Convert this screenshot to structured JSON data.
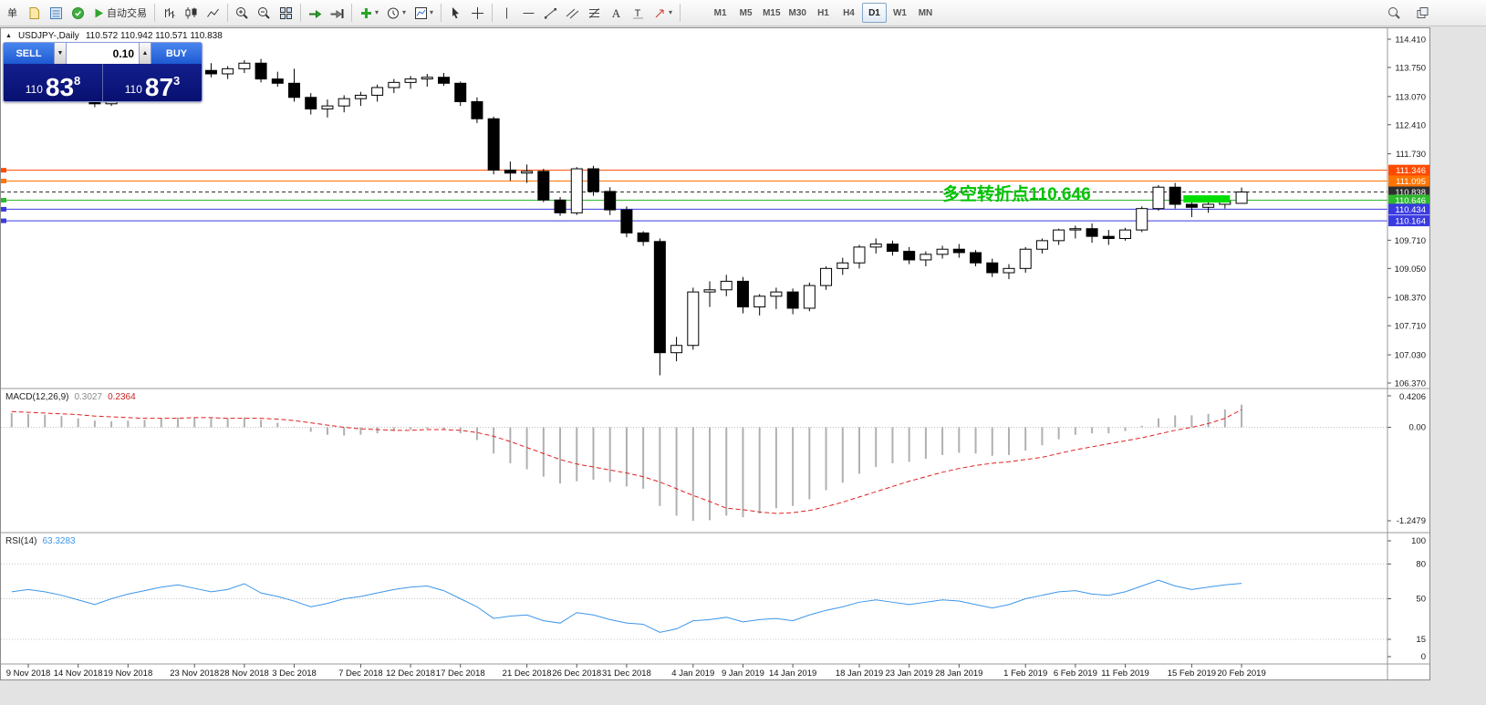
{
  "toolbar": {
    "new_order_label": "单",
    "autotrading_label": "自动交易",
    "timeframes": [
      "M1",
      "M5",
      "M15",
      "M30",
      "H1",
      "H4",
      "D1",
      "W1",
      "MN"
    ],
    "active_timeframe": "D1"
  },
  "chart": {
    "header": {
      "marker": "▲",
      "title": "USDJPY-,Daily",
      "ohlc": "110.572 110.942 110.571 110.838"
    },
    "trade_panel": {
      "sell_label": "SELL",
      "buy_label": "BUY",
      "lot": "0.10",
      "sell_price": {
        "prefix": "110",
        "big": "83",
        "sup": "8"
      },
      "buy_price": {
        "prefix": "110",
        "big": "87",
        "sup": "3"
      }
    },
    "annotation": {
      "text": "多空转折点110.646",
      "color": "#00c400"
    }
  },
  "chart_data": {
    "type": "candlestick+macd+rsi",
    "symbol": "USDJPY-",
    "timeframe": "Daily",
    "ohlc_header": {
      "open": 110.572,
      "high": 110.942,
      "low": 110.571,
      "close": 110.838
    },
    "x_labels": [
      [
        1,
        "9 Nov 2018"
      ],
      [
        4,
        "14 Nov 2018"
      ],
      [
        7,
        "19 Nov 2018"
      ],
      [
        11,
        "23 Nov 2018"
      ],
      [
        14,
        "28 Nov 2018"
      ],
      [
        17,
        "3 Dec 2018"
      ],
      [
        21,
        "7 Dec 2018"
      ],
      [
        24,
        "12 Dec 2018"
      ],
      [
        27,
        "17 Dec 2018"
      ],
      [
        31,
        "21 Dec 2018"
      ],
      [
        34,
        "26 Dec 2018"
      ],
      [
        37,
        "31 Dec 2018"
      ],
      [
        41,
        "4 Jan 2019"
      ],
      [
        44,
        "9 Jan 2019"
      ],
      [
        47,
        "14 Jan 2019"
      ],
      [
        51,
        "18 Jan 2019"
      ],
      [
        54,
        "23 Jan 2019"
      ],
      [
        57,
        "28 Jan 2019"
      ],
      [
        61,
        "1 Feb 2019"
      ],
      [
        64,
        "6 Feb 2019"
      ],
      [
        67,
        "11 Feb 2019"
      ],
      [
        71,
        "15 Feb 2019"
      ],
      [
        74,
        "20 Feb 2019"
      ]
    ],
    "candles": [
      [
        113.42,
        113.65,
        113.3,
        113.5
      ],
      [
        113.5,
        113.72,
        113.38,
        113.55
      ],
      [
        113.55,
        113.68,
        113.4,
        113.48
      ],
      [
        113.48,
        113.6,
        113.25,
        113.32
      ],
      [
        113.32,
        113.45,
        112.94,
        113.05
      ],
      [
        113.05,
        113.18,
        112.82,
        112.9
      ],
      [
        112.9,
        113.25,
        112.85,
        113.18
      ],
      [
        113.18,
        113.45,
        113.1,
        113.4
      ],
      [
        113.4,
        113.62,
        113.3,
        113.55
      ],
      [
        113.55,
        113.78,
        113.45,
        113.72
      ],
      [
        113.72,
        113.9,
        113.55,
        113.82
      ],
      [
        113.82,
        113.95,
        113.6,
        113.68
      ],
      [
        113.68,
        113.85,
        113.52,
        113.6
      ],
      [
        113.6,
        113.78,
        113.48,
        113.72
      ],
      [
        113.72,
        113.92,
        113.62,
        113.85
      ],
      [
        113.85,
        113.95,
        113.4,
        113.48
      ],
      [
        113.48,
        113.65,
        113.3,
        113.38
      ],
      [
        113.38,
        113.72,
        112.95,
        113.05
      ],
      [
        113.05,
        113.15,
        112.65,
        112.78
      ],
      [
        112.78,
        113.0,
        112.58,
        112.85
      ],
      [
        112.85,
        113.1,
        112.7,
        113.02
      ],
      [
        113.02,
        113.18,
        112.85,
        113.1
      ],
      [
        113.1,
        113.35,
        112.95,
        113.28
      ],
      [
        113.28,
        113.48,
        113.15,
        113.4
      ],
      [
        113.4,
        113.55,
        113.25,
        113.48
      ],
      [
        113.48,
        113.6,
        113.3,
        113.52
      ],
      [
        113.52,
        113.62,
        113.32,
        113.38
      ],
      [
        113.38,
        113.42,
        112.85,
        112.95
      ],
      [
        112.95,
        113.05,
        112.45,
        112.55
      ],
      [
        112.55,
        112.6,
        111.25,
        111.35
      ],
      [
        111.35,
        111.55,
        111.1,
        111.28
      ],
      [
        111.28,
        111.48,
        111.05,
        111.32
      ],
      [
        111.32,
        111.38,
        110.6,
        110.65
      ],
      [
        110.65,
        110.72,
        110.28,
        110.35
      ],
      [
        110.35,
        111.42,
        110.3,
        111.38
      ],
      [
        111.38,
        111.45,
        110.75,
        110.85
      ],
      [
        110.85,
        110.95,
        110.3,
        110.42
      ],
      [
        110.42,
        110.5,
        109.78,
        109.88
      ],
      [
        109.88,
        109.92,
        109.58,
        109.68
      ],
      [
        109.68,
        109.75,
        106.55,
        107.08
      ],
      [
        107.08,
        107.45,
        106.88,
        107.25
      ],
      [
        107.25,
        108.6,
        107.15,
        108.5
      ],
      [
        108.5,
        108.75,
        108.15,
        108.55
      ],
      [
        108.55,
        108.9,
        108.4,
        108.75
      ],
      [
        108.75,
        108.85,
        108.0,
        108.15
      ],
      [
        108.15,
        108.45,
        107.95,
        108.4
      ],
      [
        108.4,
        108.6,
        108.1,
        108.5
      ],
      [
        108.5,
        108.58,
        107.98,
        108.12
      ],
      [
        108.12,
        108.72,
        108.05,
        108.65
      ],
      [
        108.65,
        109.1,
        108.55,
        109.05
      ],
      [
        109.05,
        109.3,
        108.9,
        109.18
      ],
      [
        109.18,
        109.6,
        109.05,
        109.55
      ],
      [
        109.55,
        109.75,
        109.4,
        109.62
      ],
      [
        109.62,
        109.7,
        109.35,
        109.45
      ],
      [
        109.45,
        109.55,
        109.15,
        109.25
      ],
      [
        109.25,
        109.45,
        109.1,
        109.38
      ],
      [
        109.38,
        109.58,
        109.28,
        109.5
      ],
      [
        109.5,
        109.62,
        109.3,
        109.42
      ],
      [
        109.42,
        109.48,
        109.1,
        109.18
      ],
      [
        109.18,
        109.28,
        108.85,
        108.95
      ],
      [
        108.95,
        109.15,
        108.8,
        109.05
      ],
      [
        109.05,
        109.55,
        108.95,
        109.5
      ],
      [
        109.5,
        109.75,
        109.4,
        109.7
      ],
      [
        109.7,
        109.98,
        109.6,
        109.95
      ],
      [
        109.95,
        110.05,
        109.75,
        109.98
      ],
      [
        109.98,
        110.1,
        109.65,
        109.8
      ],
      [
        109.8,
        109.95,
        109.6,
        109.75
      ],
      [
        109.75,
        110.0,
        109.7,
        109.95
      ],
      [
        109.95,
        110.5,
        109.9,
        110.45
      ],
      [
        110.45,
        111.0,
        110.4,
        110.95
      ],
      [
        110.95,
        111.05,
        110.45,
        110.55
      ],
      [
        110.55,
        110.68,
        110.25,
        110.48
      ],
      [
        110.48,
        110.62,
        110.35,
        110.55
      ],
      [
        110.55,
        110.7,
        110.45,
        110.62
      ],
      [
        110.572,
        110.942,
        110.571,
        110.838
      ]
    ],
    "price_axis": [
      "114.410",
      "113.750",
      "113.070",
      "112.410",
      "111.730",
      "109.710",
      "109.050",
      "108.370",
      "107.710",
      "107.030",
      "106.370"
    ],
    "levels": [
      {
        "price": 111.346,
        "label": "111.346",
        "color": "#ff4a00"
      },
      {
        "price": 111.095,
        "label": "111.095",
        "color": "#ff7300"
      },
      {
        "price": 110.838,
        "label": "110.838",
        "color": "#2f2f2f",
        "style": "dash"
      },
      {
        "price": 110.646,
        "label": "110.646",
        "color": "#2db82d"
      },
      {
        "price": 110.434,
        "label": "110.434",
        "color": "#3a3ae0"
      },
      {
        "price": 110.164,
        "label": "110.164",
        "color": "#3a3ae0"
      }
    ],
    "rect_annotation": {
      "bar1": 70.5,
      "bar2": 73.3,
      "price1": 110.76,
      "price2": 110.59,
      "color": "#00dd00"
    },
    "macd": {
      "label": "MACD(12,26,9)",
      "main_value": "0.3027",
      "signal_value": "0.2364",
      "scale": [
        {
          "v": 0.4206,
          "t": "0.4206"
        },
        {
          "v": 0,
          "t": "0.00"
        },
        {
          "v": -1.2479,
          "t": "-1.2479"
        }
      ],
      "hist": [
        0.19,
        0.18,
        0.17,
        0.15,
        0.12,
        0.09,
        0.08,
        0.09,
        0.1,
        0.12,
        0.13,
        0.13,
        0.12,
        0.12,
        0.13,
        0.1,
        0.06,
        0.01,
        -0.06,
        -0.1,
        -0.11,
        -0.1,
        -0.08,
        -0.05,
        -0.03,
        -0.02,
        -0.03,
        -0.08,
        -0.17,
        -0.35,
        -0.48,
        -0.56,
        -0.66,
        -0.75,
        -0.72,
        -0.7,
        -0.73,
        -0.79,
        -0.82,
        -1.05,
        -1.18,
        -1.25,
        -1.24,
        -1.18,
        -1.2,
        -1.15,
        -1.08,
        -1.05,
        -0.96,
        -0.84,
        -0.74,
        -0.62,
        -0.53,
        -0.48,
        -0.46,
        -0.42,
        -0.37,
        -0.34,
        -0.35,
        -0.38,
        -0.37,
        -0.31,
        -0.24,
        -0.16,
        -0.1,
        -0.08,
        -0.08,
        -0.05,
        0.02,
        0.12,
        0.16,
        0.16,
        0.18,
        0.24,
        0.3027
      ],
      "signal": [
        0.21,
        0.2,
        0.19,
        0.18,
        0.17,
        0.15,
        0.14,
        0.13,
        0.12,
        0.12,
        0.12,
        0.13,
        0.13,
        0.12,
        0.12,
        0.12,
        0.11,
        0.09,
        0.06,
        0.03,
        0.0,
        -0.02,
        -0.03,
        -0.04,
        -0.04,
        -0.03,
        -0.03,
        -0.04,
        -0.07,
        -0.12,
        -0.19,
        -0.27,
        -0.35,
        -0.43,
        -0.49,
        -0.53,
        -0.57,
        -0.61,
        -0.66,
        -0.73,
        -0.82,
        -0.91,
        -0.99,
        -1.08,
        -1.1,
        -1.13,
        -1.15,
        -1.14,
        -1.11,
        -1.06,
        -1.0,
        -0.93,
        -0.86,
        -0.79,
        -0.72,
        -0.66,
        -0.6,
        -0.55,
        -0.51,
        -0.48,
        -0.46,
        -0.43,
        -0.4,
        -0.35,
        -0.3,
        -0.26,
        -0.22,
        -0.18,
        -0.14,
        -0.09,
        -0.04,
        0.0,
        0.05,
        0.12,
        0.2364
      ]
    },
    "rsi": {
      "label": "RSI(14)",
      "value": "63.3283",
      "scale": [
        {
          "v": 100,
          "t": "100"
        },
        {
          "v": 80,
          "t": "80"
        },
        {
          "v": 50,
          "t": "50"
        },
        {
          "v": 15,
          "t": "15"
        },
        {
          "v": 0,
          "t": "0"
        }
      ],
      "levels": [
        80,
        50,
        15
      ],
      "values": [
        56,
        58,
        56,
        53,
        49,
        45,
        50,
        54,
        57,
        60,
        62,
        59,
        56,
        58,
        63,
        55,
        52,
        48,
        43,
        46,
        50,
        52,
        55,
        58,
        60,
        61,
        57,
        50,
        43,
        33,
        35,
        36,
        31,
        29,
        38,
        36,
        32,
        29,
        28,
        21,
        24,
        31,
        32,
        34,
        30,
        32,
        33,
        31,
        36,
        40,
        43,
        47,
        49,
        47,
        45,
        47,
        49,
        48,
        45,
        42,
        45,
        50,
        53,
        56,
        57,
        54,
        53,
        56,
        61,
        66,
        61,
        58,
        60,
        62,
        63.3283
      ]
    },
    "colors": {
      "bull": "#ffffff",
      "bear": "#000000",
      "wick": "#000000",
      "macd_hist": "#b0b0b0",
      "macd_signal": "#e02020",
      "rsi_line": "#3d96e8"
    }
  }
}
